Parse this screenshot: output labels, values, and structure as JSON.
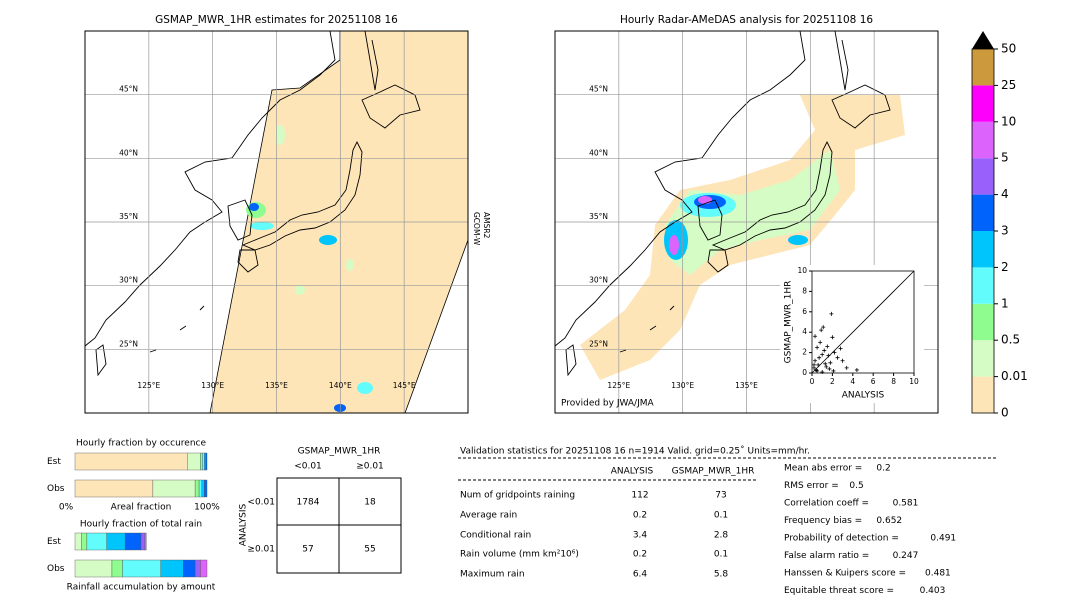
{
  "maps": [
    {
      "title": "GSMAP_MWR_1HR estimates for 20251108 16",
      "lonlim": [
        120,
        150
      ],
      "latlim": [
        20,
        50
      ],
      "lonticks": [
        {
          "value": 125,
          "label": "125°E"
        },
        {
          "value": 130,
          "label": "130°E"
        },
        {
          "value": 135,
          "label": "135°E"
        },
        {
          "value": 140,
          "label": "140°E"
        },
        {
          "value": 145,
          "label": "145°E"
        }
      ],
      "latticks": [
        {
          "value": 25,
          "label": "25°N"
        },
        {
          "value": 30,
          "label": "30°N"
        },
        {
          "value": 35,
          "label": "35°N"
        },
        {
          "value": 40,
          "label": "40°N"
        },
        {
          "value": 45,
          "label": "45°N"
        }
      ],
      "annotation": [
        "GCOM-W",
        "AMSR2"
      ]
    },
    {
      "title": "Hourly Radar-AMeDAS analysis for 20251108 16",
      "lonlim": [
        120,
        150
      ],
      "latlim": [
        20,
        50
      ],
      "lonticks": [
        {
          "value": 125,
          "label": "125°E"
        },
        {
          "value": 130,
          "label": "130°E"
        },
        {
          "value": 135,
          "label": "135°E"
        },
        {
          "value": 140,
          "label": "140°E"
        },
        {
          "value": 145,
          "label": "145°E"
        }
      ],
      "latticks": [
        {
          "value": 25,
          "label": "25°N"
        },
        {
          "value": 30,
          "label": "30°N"
        },
        {
          "value": 35,
          "label": "35°N"
        },
        {
          "value": 40,
          "label": "40°N"
        },
        {
          "value": 45,
          "label": "45°N"
        }
      ],
      "credit": "Provided by JWA/JMA"
    }
  ],
  "colorbar": {
    "levels": [
      0,
      0.01,
      0.5,
      1,
      2,
      3,
      4,
      5,
      10,
      25,
      50
    ],
    "colors": [
      "#fee5b8",
      "#d5fcc4",
      "#8efc8e",
      "#62fcfc",
      "#00c4fc",
      "#0064fc",
      "#9a60fc",
      "#dc64fc",
      "#fc00fc",
      "#cc9a3c"
    ],
    "extend_color": "#000000"
  },
  "chart_data": [
    {
      "type": "bar",
      "orientation": "horizontal",
      "stacked": true,
      "title": "Hourly fraction by occurence",
      "categories": [
        "Est",
        "Obs"
      ],
      "xlim": [
        0,
        100
      ],
      "xticks": [
        {
          "value": 0,
          "label": "0%"
        },
        {
          "value": 100,
          "label": "100%"
        }
      ],
      "xlabel": "Areal fraction",
      "series": [
        {
          "color": "#fee5b8",
          "values": [
            85,
            59
          ]
        },
        {
          "color": "#d5fcc4",
          "values": [
            10,
            32
          ]
        },
        {
          "color": "#8efc8e",
          "values": [
            1.5,
            3
          ]
        },
        {
          "color": "#62fcfc",
          "values": [
            1.5,
            2
          ]
        },
        {
          "color": "#00c4fc",
          "values": [
            1,
            2
          ]
        },
        {
          "color": "#0064fc",
          "values": [
            1,
            2
          ]
        }
      ]
    },
    {
      "type": "bar",
      "orientation": "horizontal",
      "stacked": true,
      "title": "Hourly fraction of total rain",
      "categories": [
        "Est",
        "Obs"
      ],
      "xlim": [
        0,
        100
      ],
      "xlabel": "Rainfall accumulation by amount",
      "series": [
        {
          "color": "#d5fcc4",
          "values": [
            5,
            28
          ]
        },
        {
          "color": "#8efc8e",
          "values": [
            4,
            8
          ]
        },
        {
          "color": "#62fcfc",
          "values": [
            15,
            29
          ]
        },
        {
          "color": "#00c4fc",
          "values": [
            14,
            17
          ]
        },
        {
          "color": "#0064fc",
          "values": [
            12,
            9
          ]
        },
        {
          "color": "#9a60fc",
          "values": [
            3,
            4
          ]
        },
        {
          "color": "#dc64fc",
          "values": [
            1,
            5
          ]
        }
      ]
    },
    {
      "type": "scatter",
      "xlabel": "ANALYSIS",
      "ylabel": "GSMAP_MWR_1HR",
      "xlim": [
        0,
        10
      ],
      "ylim": [
        0,
        10
      ],
      "xticks": [
        0,
        2,
        4,
        6,
        8,
        10
      ],
      "yticks": [
        0,
        2,
        4,
        6,
        8,
        10
      ],
      "color": "#000000",
      "x": [
        0.2,
        0.3,
        0.5,
        0.8,
        1,
        1.2,
        1.5,
        1.8,
        2,
        2.2,
        2.5,
        0.4,
        0.6,
        0.9,
        1.1,
        1.4,
        1.7,
        2.1,
        3,
        3.4,
        2.8,
        0.3,
        0.7,
        1.3,
        0.5,
        1,
        1.6,
        4.4,
        1.9,
        0.2
      ],
      "y": [
        0.5,
        1.2,
        2.5,
        3,
        1.8,
        2.2,
        2.6,
        1,
        3.5,
        2,
        1.5,
        0.3,
        0.8,
        4.2,
        4.5,
        0.6,
        0.4,
        0.2,
        1.2,
        0.5,
        2.4,
        3.6,
        1.5,
        0.9,
        0.2,
        0.1,
        1.7,
        0.3,
        5.8,
        0.8
      ]
    }
  ],
  "contingency": {
    "header": "GSMAP_MWR_1HR",
    "col_labels": [
      "<0.01",
      "≥0.01"
    ],
    "row_title": "ANALYSIS",
    "row_labels": [
      "<0.01",
      "≥0.01"
    ],
    "cells": [
      [
        1784,
        18
      ],
      [
        57,
        55
      ]
    ]
  },
  "validation": {
    "title": "Validation statistics for 20251108 16  n=1914 Valid. grid=0.25˚ Units=mm/hr.",
    "columns": [
      "ANALYSIS",
      "GSMAP_MWR_1HR"
    ],
    "rows": [
      {
        "label": "Num of gridpoints raining",
        "values": [
          112,
          73
        ]
      },
      {
        "label": "Average rain",
        "values": [
          0.2,
          0.1
        ]
      },
      {
        "label": "Conditional rain",
        "values": [
          3.4,
          2.8
        ]
      },
      {
        "label": "Rain volume (mm km²10⁶)",
        "values": [
          0.2,
          0.1
        ]
      },
      {
        "label": "Maximum rain",
        "values": [
          6.4,
          5.8
        ]
      }
    ],
    "scores": [
      {
        "label": "Mean abs error =",
        "value": 0.2
      },
      {
        "label": "RMS error =",
        "value": 0.5
      },
      {
        "label": "Correlation coeff =",
        "value": 0.581
      },
      {
        "label": "Frequency bias =",
        "value": 0.652
      },
      {
        "label": "Probability of detection =",
        "value": 0.491
      },
      {
        "label": "False alarm ratio =",
        "value": 0.247
      },
      {
        "label": "Hanssen & Kuipers score =",
        "value": 0.481
      },
      {
        "label": "Equitable threat score =",
        "value": 0.403
      }
    ]
  }
}
